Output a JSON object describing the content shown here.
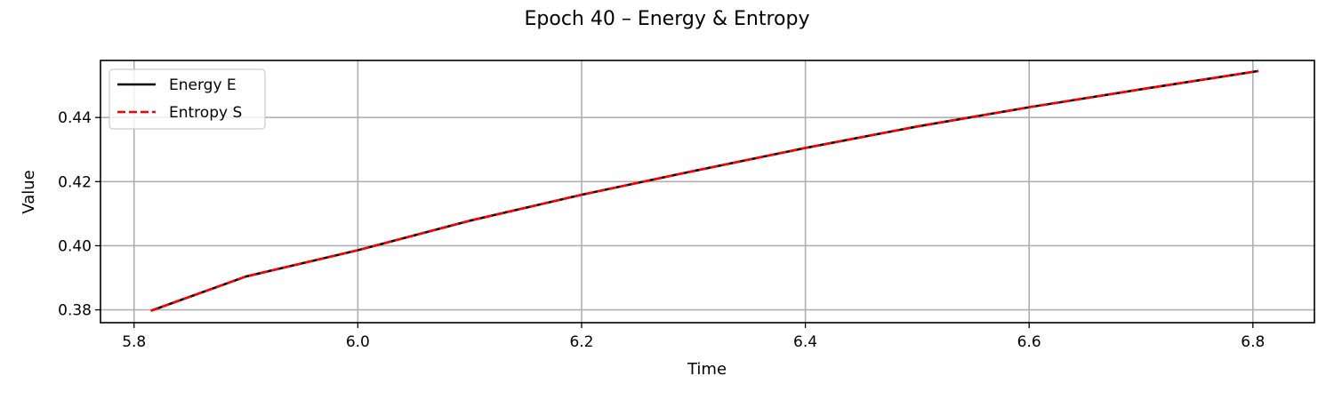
{
  "chart_data": {
    "type": "line",
    "title": "Epoch 40 – Energy & Entropy",
    "xlabel": "Time",
    "ylabel": "Value",
    "xlim": [
      5.77,
      6.855
    ],
    "ylim": [
      0.376,
      0.4578
    ],
    "xticks": [
      5.8,
      6.0,
      6.2,
      6.4,
      6.6,
      6.8
    ],
    "xtick_labels": [
      "5.8",
      "6.0",
      "6.2",
      "6.4",
      "6.6",
      "6.8"
    ],
    "yticks": [
      0.38,
      0.4,
      0.42,
      0.44
    ],
    "ytick_labels": [
      "0.38",
      "0.40",
      "0.42",
      "0.44"
    ],
    "grid": true,
    "legend": "top-left",
    "series": [
      {
        "name": "Energy E",
        "color": "#000000",
        "style": "solid",
        "x": [
          5.815,
          5.9,
          6.0,
          6.1,
          6.2,
          6.3,
          6.4,
          6.5,
          6.6,
          6.7,
          6.805
        ],
        "y": [
          0.3797,
          0.3904,
          0.3986,
          0.4078,
          0.4159,
          0.4233,
          0.4305,
          0.4372,
          0.4432,
          0.4488,
          0.4545
        ]
      },
      {
        "name": "Entropy S",
        "color": "#ff0000",
        "style": "dashed",
        "x": [
          5.815,
          5.9,
          6.0,
          6.1,
          6.2,
          6.3,
          6.4,
          6.5,
          6.6,
          6.7,
          6.805
        ],
        "y": [
          0.3797,
          0.3904,
          0.3986,
          0.4078,
          0.4159,
          0.4233,
          0.4305,
          0.4372,
          0.4432,
          0.4488,
          0.4545
        ]
      }
    ]
  }
}
